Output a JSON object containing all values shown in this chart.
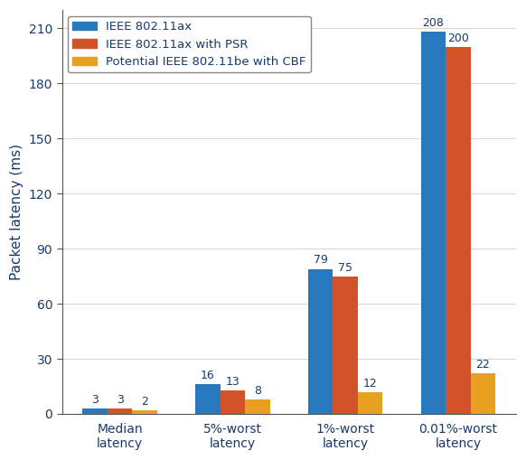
{
  "categories": [
    "Median\nlatency",
    "5%-worst\nlatency",
    "1%-worst\nlatency",
    "0.01%-worst\nlatency"
  ],
  "series": {
    "IEEE 802.11ax": [
      3,
      16,
      79,
      208
    ],
    "IEEE 802.11ax with PSR": [
      3,
      13,
      75,
      200
    ],
    "Potential IEEE 802.11be with CBF": [
      2,
      8,
      12,
      22
    ]
  },
  "colors": {
    "IEEE 802.11ax": "#2878bd",
    "IEEE 802.11ax with PSR": "#d2522a",
    "Potential IEEE 802.11be with CBF": "#e8a020"
  },
  "ylabel": "Packet latency (ms)",
  "ylim": [
    0,
    220
  ],
  "yticks": [
    0,
    30,
    60,
    90,
    120,
    150,
    180,
    210
  ],
  "bar_width": 0.22,
  "legend_loc": "upper left",
  "background_color": "#ffffff",
  "plot_bg_color": "#ffffff",
  "grid_color": "#d8d8d8",
  "text_color": "#1a3a6b",
  "label_fontsize": 9,
  "tick_fontsize": 10,
  "ylabel_fontsize": 11,
  "legend_fontsize": 9.5
}
